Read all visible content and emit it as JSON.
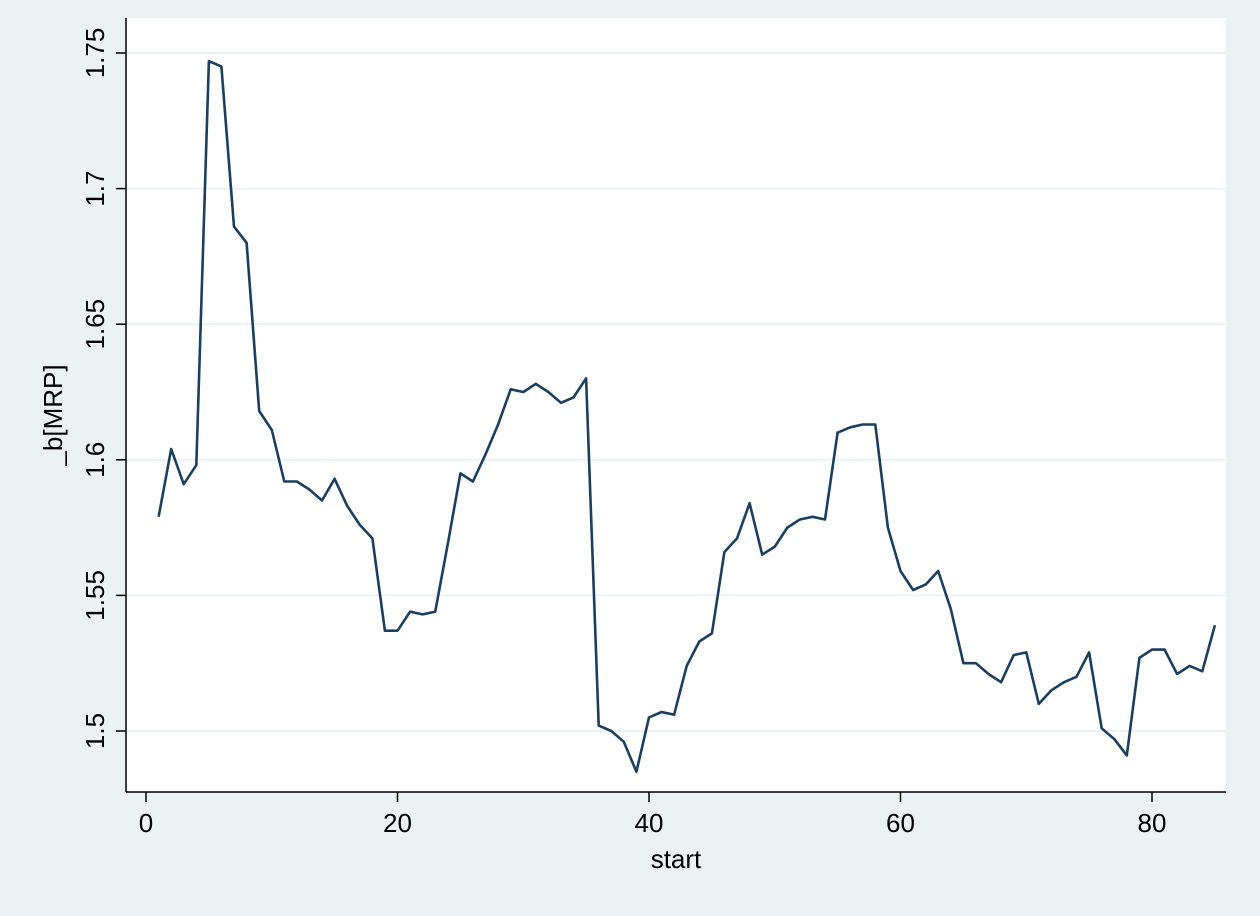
{
  "chart_data": {
    "type": "line",
    "xlabel": "start",
    "ylabel": "_b[MRP]",
    "xlim": [
      0,
      86
    ],
    "ylim": [
      1.48,
      1.75
    ],
    "xticks": [
      0,
      20,
      40,
      60,
      80
    ],
    "yticks": [
      1.5,
      1.55,
      1.6,
      1.65,
      1.7,
      1.75
    ],
    "ytick_labels": [
      "1.5",
      "1.55",
      "1.6",
      "1.65",
      "1.7",
      "1.75"
    ],
    "xtick_labels": [
      "0",
      "20",
      "40",
      "60",
      "80"
    ],
    "grid": "horizontal",
    "line_color": "#1c3f5f",
    "background_color": "#eaf2f3",
    "plot_background_color": "#ffffff",
    "series": [
      {
        "x": [
          1,
          2,
          3,
          4,
          5,
          6,
          7,
          8,
          9,
          10,
          11,
          12,
          13,
          14,
          15,
          16,
          17,
          18,
          19,
          20,
          21,
          22,
          23,
          24,
          25,
          26,
          27,
          28,
          29,
          30,
          31,
          32,
          33,
          34,
          35,
          36,
          37,
          38,
          39,
          40,
          41,
          42,
          43,
          44,
          45,
          46,
          47,
          48,
          49,
          50,
          51,
          52,
          53,
          54,
          55,
          56,
          57,
          58,
          59,
          60,
          61,
          62,
          63,
          64,
          65,
          66,
          67,
          68,
          69,
          70,
          71,
          72,
          73,
          74,
          75,
          76,
          77,
          78,
          79,
          80,
          81,
          82,
          83,
          84,
          85
        ],
        "values": [
          1.579,
          1.604,
          1.591,
          1.598,
          1.747,
          1.745,
          1.686,
          1.68,
          1.618,
          1.611,
          1.592,
          1.592,
          1.589,
          1.585,
          1.593,
          1.583,
          1.576,
          1.571,
          1.537,
          1.537,
          1.544,
          1.543,
          1.544,
          1.569,
          1.595,
          1.592,
          1.602,
          1.613,
          1.626,
          1.625,
          1.628,
          1.625,
          1.621,
          1.623,
          1.63,
          1.502,
          1.5,
          1.496,
          1.485,
          1.505,
          1.507,
          1.506,
          1.524,
          1.533,
          1.536,
          1.566,
          1.571,
          1.584,
          1.565,
          1.568,
          1.575,
          1.578,
          1.579,
          1.578,
          1.61,
          1.612,
          1.613,
          1.613,
          1.575,
          1.559,
          1.552,
          1.554,
          1.559,
          1.545,
          1.525,
          1.525,
          1.521,
          1.518,
          1.528,
          1.529,
          1.51,
          1.515,
          1.518,
          1.52,
          1.529,
          1.501,
          1.497,
          1.491,
          1.527,
          1.53,
          1.53,
          1.521,
          1.524,
          1.522,
          1.539
        ]
      }
    ]
  }
}
